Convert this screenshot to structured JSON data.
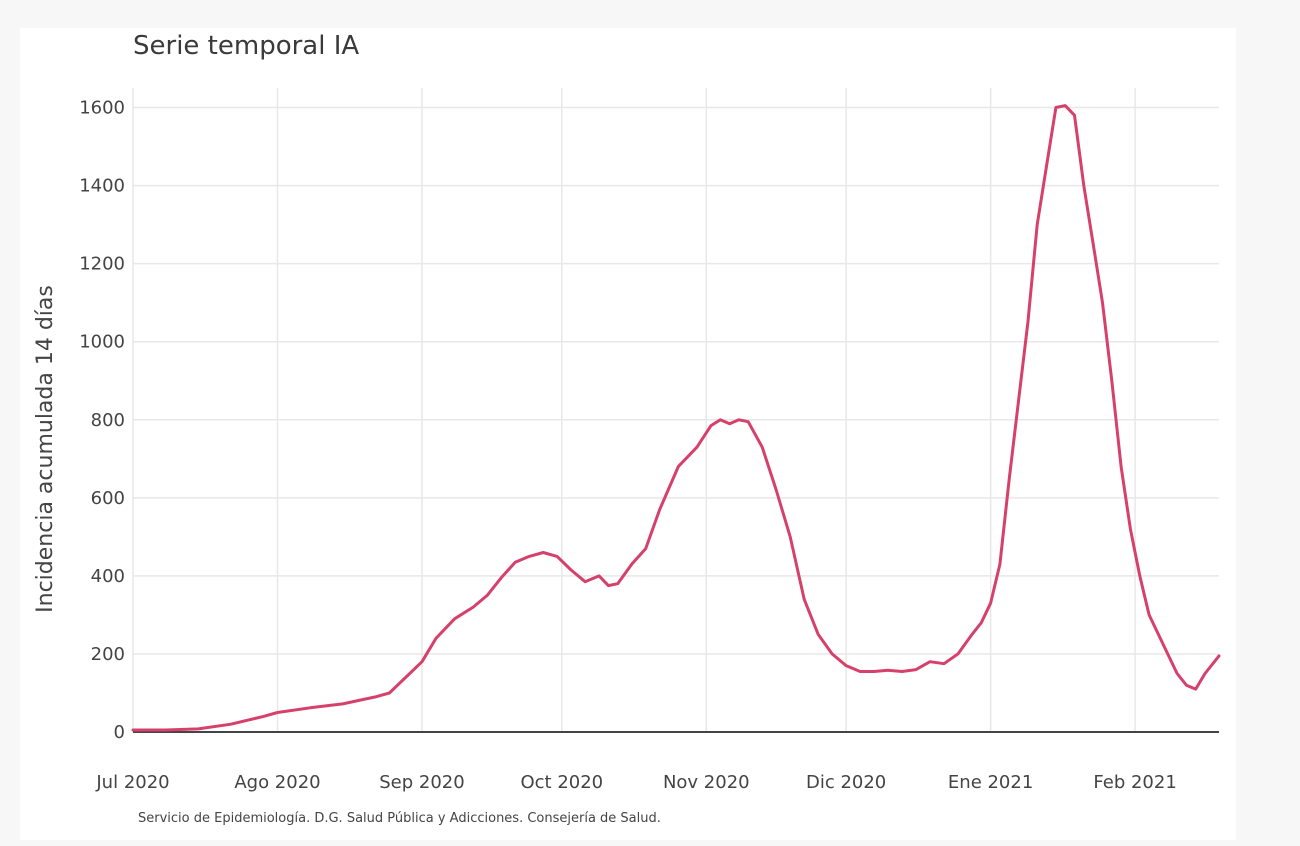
{
  "chart_data": {
    "type": "line",
    "title": "Serie temporal IA",
    "ylabel": "Incidencia acumulada 14 días",
    "xlabel": "",
    "source": "Servicio de Epidemiología. D.G. Salud Pública y Adicciones. Consejería de Salud.",
    "ylim": [
      0,
      1650
    ],
    "yticks": [
      0,
      200,
      400,
      600,
      800,
      1000,
      1200,
      1400,
      1600
    ],
    "xticks": [
      "Jul 2020",
      "Ago 2020",
      "Sep 2020",
      "Oct 2020",
      "Nov 2020",
      "Dic 2020",
      "Ene 2021",
      "Feb 2021"
    ],
    "xlim": [
      "2020-07-01",
      "2021-02-19"
    ],
    "grid": true,
    "line_color": "#d6416b",
    "series": [
      {
        "name": "",
        "x": [
          "2020-07-01",
          "2020-07-08",
          "2020-07-15",
          "2020-07-22",
          "2020-07-29",
          "2020-08-01",
          "2020-08-08",
          "2020-08-15",
          "2020-08-22",
          "2020-08-25",
          "2020-09-01",
          "2020-09-04",
          "2020-09-08",
          "2020-09-12",
          "2020-09-15",
          "2020-09-18",
          "2020-09-21",
          "2020-09-24",
          "2020-09-27",
          "2020-09-30",
          "2020-10-03",
          "2020-10-06",
          "2020-10-09",
          "2020-10-11",
          "2020-10-13",
          "2020-10-16",
          "2020-10-19",
          "2020-10-22",
          "2020-10-26",
          "2020-10-30",
          "2020-11-02",
          "2020-11-04",
          "2020-11-06",
          "2020-11-08",
          "2020-11-10",
          "2020-11-13",
          "2020-11-16",
          "2020-11-19",
          "2020-11-22",
          "2020-11-25",
          "2020-11-28",
          "2020-12-01",
          "2020-12-04",
          "2020-12-07",
          "2020-12-10",
          "2020-12-13",
          "2020-12-16",
          "2020-12-19",
          "2020-12-22",
          "2020-12-25",
          "2020-12-28",
          "2020-12-30",
          "2021-01-01",
          "2021-01-03",
          "2021-01-05",
          "2021-01-07",
          "2021-01-09",
          "2021-01-11",
          "2021-01-13",
          "2021-01-15",
          "2021-01-17",
          "2021-01-19",
          "2021-01-21",
          "2021-01-23",
          "2021-01-25",
          "2021-01-27",
          "2021-01-29",
          "2021-01-31",
          "2021-02-02",
          "2021-02-04",
          "2021-02-06",
          "2021-02-08",
          "2021-02-10",
          "2021-02-12",
          "2021-02-14",
          "2021-02-16",
          "2021-02-19"
        ],
        "y": [
          5,
          5,
          8,
          20,
          40,
          50,
          62,
          72,
          90,
          100,
          180,
          240,
          290,
          320,
          350,
          395,
          435,
          450,
          460,
          450,
          415,
          385,
          400,
          375,
          380,
          430,
          470,
          570,
          680,
          730,
          785,
          800,
          790,
          800,
          795,
          730,
          620,
          500,
          340,
          250,
          200,
          170,
          155,
          155,
          158,
          155,
          160,
          180,
          175,
          200,
          250,
          280,
          330,
          430,
          650,
          850,
          1050,
          1300,
          1450,
          1600,
          1605,
          1580,
          1400,
          1250,
          1100,
          900,
          680,
          520,
          400,
          300,
          250,
          200,
          150,
          120,
          110,
          150,
          195
        ]
      }
    ]
  }
}
